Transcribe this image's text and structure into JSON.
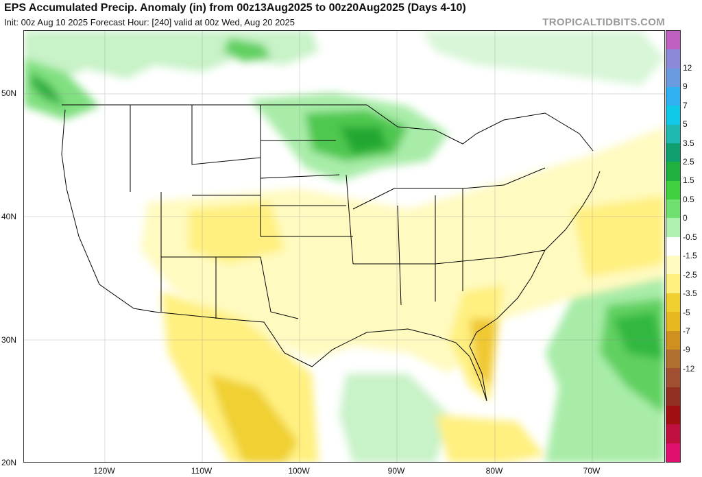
{
  "header": {
    "title": "EPS Accumulated Precip. Anomaly (in) from 00z13Aug2025 to 00z20Aug2025 (Days 4-10)",
    "subtitle": "Init: 00z Aug 10 2025   Forecast Hour: [240]   valid at 00z Wed, Aug 20 2025",
    "site": "TROPICALTIDBITS.COM"
  },
  "map": {
    "lat_labels": [
      "50N",
      "40N",
      "30N",
      "20N"
    ],
    "lon_labels": [
      "120W",
      "110W",
      "100W",
      "90W",
      "80W",
      "70W"
    ]
  },
  "colorbar": {
    "labels": [
      "12",
      "9",
      "7",
      "5",
      "3.5",
      "2.5",
      "1.5",
      "0.5",
      "0",
      "-0.5",
      "-1.5",
      "-2.5",
      "-3.5",
      "-5",
      "-7",
      "-9",
      "-12"
    ],
    "colors": [
      "#c060c0",
      "#8a8ad8",
      "#6a9ae0",
      "#30b0f0",
      "#10c8e8",
      "#20b8b0",
      "#10a070",
      "#20b040",
      "#40d040",
      "#70e070",
      "#b0f0b0",
      "#ffffff",
      "#fffac0",
      "#fff080",
      "#f0d030",
      "#e8b820",
      "#d09020",
      "#b07030",
      "#a05030",
      "#903020",
      "#a01010",
      "#c01040",
      "#e01070"
    ]
  }
}
